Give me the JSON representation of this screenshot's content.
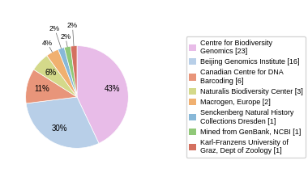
{
  "chart_data": {
    "type": "pie",
    "categories": [
      "Centre for Biodiversity\nGenomics [23]",
      "Beijing Genomics Institute [16]",
      "Canadian Centre for DNA\nBarcoding [6]",
      "Naturalis Biodiversity Center [3]",
      "Macrogen, Europe [2]",
      "Senckenberg Natural History\nCollections Dresden [1]",
      "Mined from GenBank, NCBI [1]",
      "Karl-Franzens University of\nGraz, Dept of Zoology [1]"
    ],
    "values": [
      43,
      30,
      11,
      6,
      4,
      2,
      2,
      2
    ],
    "value_labels": [
      "43%",
      "30%",
      "11%",
      "6%",
      "4%",
      "2%",
      "2%",
      "2%"
    ],
    "colors": [
      "#e8bce8",
      "#b8cfe8",
      "#e8957a",
      "#d4d98a",
      "#f0b070",
      "#88b8d8",
      "#90c878",
      "#d47060"
    ],
    "data_labels": true,
    "legend": "right"
  }
}
